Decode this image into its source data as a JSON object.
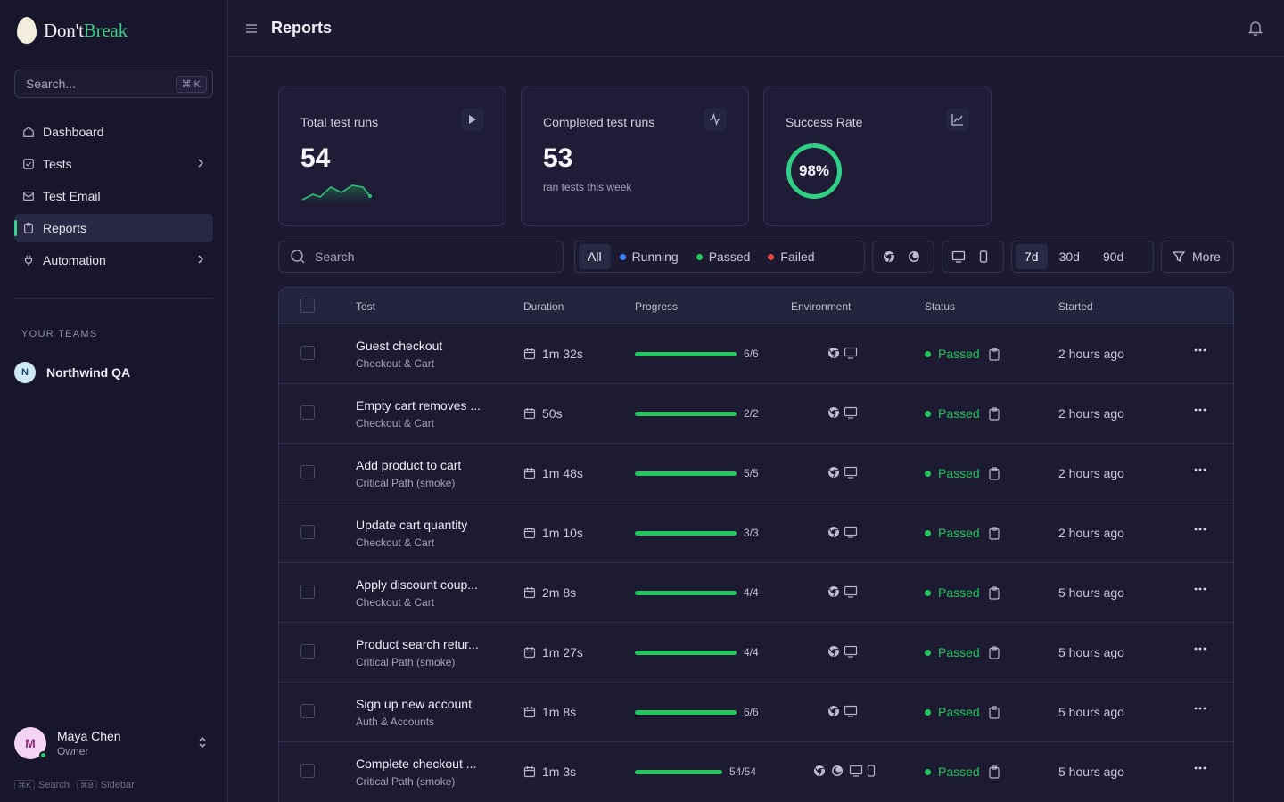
{
  "app": {
    "logo_part1": "Don't",
    "logo_part2": "Break"
  },
  "sidebar": {
    "search_placeholder": "Search...",
    "search_shortcut": "⌘ K",
    "items": [
      {
        "label": "Dashboard",
        "icon": "home-icon"
      },
      {
        "label": "Tests",
        "icon": "checkbox-icon",
        "has_children": true
      },
      {
        "label": "Test Email",
        "icon": "mail-icon"
      },
      {
        "label": "Reports",
        "icon": "clipboard-icon",
        "active": true
      },
      {
        "label": "Automation",
        "icon": "plug-icon",
        "has_children": true
      }
    ],
    "teams_label": "YOUR TEAMS",
    "team": {
      "initial": "N",
      "name": "Northwind QA"
    },
    "user": {
      "initial": "M",
      "name": "Maya Chen",
      "role": "Owner",
      "online": true
    },
    "shortcuts": [
      {
        "key": "⌘K",
        "label": "Search"
      },
      {
        "key": "⌘B",
        "label": "Sidebar"
      }
    ]
  },
  "header": {
    "title": "Reports"
  },
  "stats": {
    "total": {
      "title": "Total test runs",
      "value": "54"
    },
    "completed": {
      "title": "Completed test runs",
      "value": "53",
      "sub": "ran tests this week"
    },
    "success": {
      "title": "Success Rate",
      "value": "98%",
      "fraction": 0.98
    }
  },
  "toolbar": {
    "search_placeholder": "Search",
    "filters": [
      {
        "label": "All",
        "active": true
      },
      {
        "label": "Running",
        "color": "#3b82f6"
      },
      {
        "label": "Passed",
        "color": "#22c55e"
      },
      {
        "label": "Failed",
        "color": "#ef4444"
      }
    ],
    "ranges": [
      "7d",
      "30d",
      "90d"
    ],
    "active_range": "7d",
    "more_label": "More"
  },
  "table": {
    "columns": [
      "Test",
      "Duration",
      "Progress",
      "Environment",
      "Status",
      "Started"
    ],
    "rows": [
      {
        "name": "Guest checkout",
        "group": "Checkout & Cart",
        "duration": "1m 32s",
        "progress": "6/6",
        "status": "Passed",
        "started": "2 hours ago"
      },
      {
        "name": "Empty cart removes ...",
        "group": "Checkout & Cart",
        "duration": "50s",
        "progress": "2/2",
        "status": "Passed",
        "started": "2 hours ago"
      },
      {
        "name": "Add product to cart",
        "group": "Critical Path (smoke)",
        "duration": "1m 48s",
        "progress": "5/5",
        "status": "Passed",
        "started": "2 hours ago"
      },
      {
        "name": "Update cart quantity",
        "group": "Checkout & Cart",
        "duration": "1m 10s",
        "progress": "3/3",
        "status": "Passed",
        "started": "2 hours ago"
      },
      {
        "name": "Apply discount coup...",
        "group": "Checkout & Cart",
        "duration": "2m 8s",
        "progress": "4/4",
        "status": "Passed",
        "started": "5 hours ago"
      },
      {
        "name": "Product search retur...",
        "group": "Critical Path (smoke)",
        "duration": "1m 27s",
        "progress": "4/4",
        "status": "Passed",
        "started": "5 hours ago"
      },
      {
        "name": "Sign up new account",
        "group": "Auth & Accounts",
        "duration": "1m 8s",
        "progress": "6/6",
        "status": "Passed",
        "started": "5 hours ago"
      },
      {
        "name": "Complete checkout ...",
        "group": "Critical Path (smoke)",
        "duration": "1m 3s",
        "progress": "54/54",
        "status": "Passed",
        "started": "5 hours ago",
        "multi_env": true
      }
    ]
  }
}
